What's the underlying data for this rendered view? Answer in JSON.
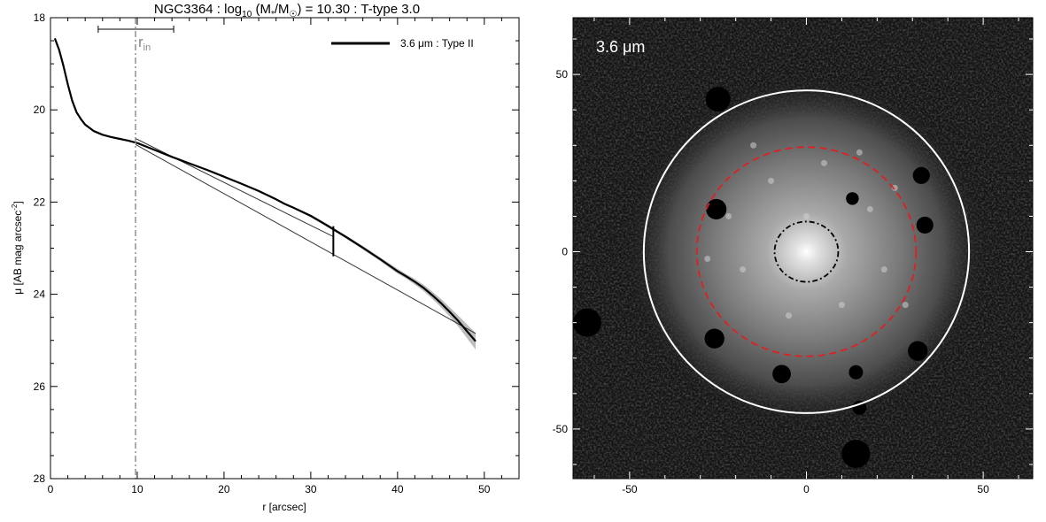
{
  "chart_data": [
    {
      "type": "line",
      "title_parts": {
        "name": "NGC3364 : log",
        "sub10": "10",
        "mass_open": " (M",
        "star": "*",
        "slash_msun": "/M",
        "sun": "☉",
        "rest": ") = 10.30 : T-type 3.0"
      },
      "xlabel": "r [arcsec]",
      "ylabel_main": "μ [AB mag arcsec",
      "ylabel_sup": "-2",
      "ylabel_end": "]",
      "xlim": [
        0,
        54
      ],
      "ylim": [
        28,
        18
      ],
      "xticks": [
        0,
        10,
        20,
        30,
        40,
        50
      ],
      "yticks": [
        18,
        20,
        22,
        24,
        26,
        28
      ],
      "legend": {
        "label": "3.6 μm : Type II",
        "placement": "top-right"
      },
      "r_in": {
        "label_main": "r",
        "label_sub": "in",
        "value": 9.8,
        "range": [
          5.5,
          14.2
        ]
      },
      "break_marker": {
        "x": 32.6,
        "y": 22.85
      },
      "series": [
        {
          "name": "3.6 μm : Type II",
          "x": [
            0.5,
            1.0,
            1.5,
            2.0,
            2.5,
            3.0,
            3.5,
            4.0,
            5.0,
            6.0,
            7.0,
            8.0,
            9.0,
            10.0,
            12.0,
            14.0,
            16.0,
            18.0,
            20.0,
            22.0,
            24.0,
            26.0,
            27.0,
            28.0,
            30.0,
            32.0,
            34.0,
            36.0,
            38.0,
            40.0,
            41.0,
            42.0,
            43.0,
            44.0,
            45.0,
            46.0,
            47.0,
            48.0,
            49.0
          ],
          "y": [
            18.45,
            18.7,
            19.05,
            19.45,
            19.8,
            20.05,
            20.2,
            20.32,
            20.46,
            20.54,
            20.59,
            20.63,
            20.67,
            20.72,
            20.87,
            21.02,
            21.16,
            21.3,
            21.45,
            21.6,
            21.76,
            21.94,
            22.04,
            22.12,
            22.3,
            22.52,
            22.75,
            22.99,
            23.24,
            23.5,
            23.61,
            23.73,
            23.86,
            24.02,
            24.19,
            24.38,
            24.58,
            24.8,
            25.02
          ],
          "err": [
            0,
            0,
            0,
            0,
            0,
            0,
            0,
            0,
            0,
            0,
            0,
            0,
            0,
            0,
            0.01,
            0.01,
            0.01,
            0.01,
            0.01,
            0.01,
            0.02,
            0.02,
            0.02,
            0.02,
            0.03,
            0.03,
            0.03,
            0.04,
            0.04,
            0.05,
            0.05,
            0.06,
            0.07,
            0.08,
            0.09,
            0.1,
            0.12,
            0.15,
            0.18
          ]
        }
      ],
      "fits": [
        {
          "name": "inner",
          "x": [
            9.8,
            32.6
          ],
          "y": [
            20.62,
            22.75
          ]
        },
        {
          "name": "outer",
          "x": [
            9.8,
            49.0
          ],
          "y": [
            20.75,
            24.85
          ]
        }
      ]
    },
    {
      "type": "heatmap",
      "label": "3.6 μm",
      "xlim": [
        -66,
        64
      ],
      "ylim": [
        -64,
        66
      ],
      "xticks": [
        -50,
        0,
        50
      ],
      "yticks": [
        -50,
        0,
        50
      ],
      "colors": {
        "outer_ellipse": "#ffffff",
        "mid_ellipse": "#e02020",
        "inner_ellipse": "#000000",
        "background": "#111111"
      },
      "ellipses": [
        {
          "name": "outer-ellipse",
          "cx": 0.5,
          "cy": 0.5,
          "rx": 46,
          "ry": 45.5,
          "angle": 10,
          "style": "solid"
        },
        {
          "name": "mid-ellipse",
          "cx": 0.5,
          "cy": 0.5,
          "rx": 31,
          "ry": 29.5,
          "angle": 0,
          "style": "dashed"
        },
        {
          "name": "inner-ellipse",
          "cx": 0.5,
          "cy": 0.5,
          "rx": 9,
          "ry": 8.5,
          "angle": 0,
          "style": "dashdot"
        }
      ],
      "masked_sources": [
        {
          "x": -25.5,
          "y": 12.0,
          "r": 2.9
        },
        {
          "x": 32.5,
          "y": 21.5,
          "r": 2.4
        },
        {
          "x": 33.5,
          "y": 7.5,
          "r": 2.4
        },
        {
          "x": 13.0,
          "y": 15.0,
          "r": 1.8
        },
        {
          "x": -26.0,
          "y": -24.5,
          "r": 2.8
        },
        {
          "x": 31.5,
          "y": -28.0,
          "r": 2.8
        },
        {
          "x": -7.0,
          "y": -34.5,
          "r": 2.6
        },
        {
          "x": 14.0,
          "y": -34.0,
          "r": 2.0
        },
        {
          "x": 15.0,
          "y": -44.0,
          "r": 2.0
        },
        {
          "x": 14.0,
          "y": -57.0,
          "r": 4.0
        },
        {
          "x": -25.0,
          "y": 43.0,
          "r": 3.5
        },
        {
          "x": -62.0,
          "y": -20.0,
          "r": 4.0
        }
      ]
    }
  ]
}
